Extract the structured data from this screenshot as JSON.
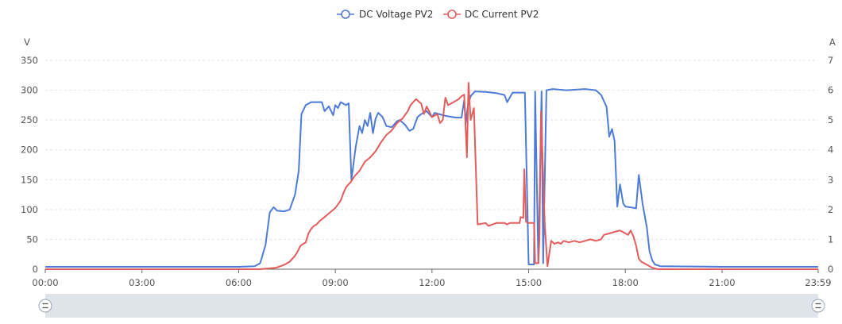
{
  "legend": [
    {
      "name": "DC Voltage PV2",
      "color": "#4e7bd8"
    },
    {
      "name": "DC Current PV2",
      "color": "#e35d5d"
    }
  ],
  "axes": {
    "left_unit": "V",
    "right_unit": "A",
    "x_ticks": [
      "00:00",
      "03:00",
      "06:00",
      "09:00",
      "12:00",
      "15:00",
      "18:00",
      "21:00",
      "23:59"
    ],
    "y_left_ticks": [
      "0",
      "50",
      "100",
      "150",
      "200",
      "250",
      "300",
      "350"
    ],
    "y_right_ticks": [
      "0",
      "1",
      "2",
      "3",
      "4",
      "5",
      "6",
      "7"
    ]
  },
  "zoom_slider": {
    "start": 0,
    "end": 100
  },
  "chart_data": {
    "type": "line",
    "xlabel": "",
    "ylabel": "V",
    "y2label": "A",
    "xlim": [
      "00:00",
      "23:59"
    ],
    "ylim": [
      0,
      350
    ],
    "y2lim": [
      0,
      7
    ],
    "grid": true,
    "legend_position": "top-center",
    "series": [
      {
        "name": "DC Voltage PV2",
        "axis": "left",
        "color": "#4e7bd8",
        "points": [
          [
            "00:00",
            4
          ],
          [
            "03:00",
            4
          ],
          [
            "06:00",
            4
          ],
          [
            "06:30",
            5
          ],
          [
            "06:40",
            10
          ],
          [
            "06:50",
            40
          ],
          [
            "06:58",
            95
          ],
          [
            "07:05",
            104
          ],
          [
            "07:12",
            98
          ],
          [
            "07:25",
            97
          ],
          [
            "07:35",
            100
          ],
          [
            "07:45",
            125
          ],
          [
            "07:52",
            165
          ],
          [
            "07:57",
            260
          ],
          [
            "08:05",
            275
          ],
          [
            "08:15",
            280
          ],
          [
            "08:35",
            280
          ],
          [
            "08:40",
            265
          ],
          [
            "08:48",
            273
          ],
          [
            "08:56",
            258
          ],
          [
            "09:00",
            275
          ],
          [
            "09:05",
            270
          ],
          [
            "09:10",
            280
          ],
          [
            "09:20",
            275
          ],
          [
            "09:25",
            278
          ],
          [
            "09:30",
            150
          ],
          [
            "09:38",
            205
          ],
          [
            "09:45",
            240
          ],
          [
            "09:50",
            228
          ],
          [
            "09:55",
            250
          ],
          [
            "10:00",
            240
          ],
          [
            "10:05",
            262
          ],
          [
            "10:10",
            228
          ],
          [
            "10:15",
            252
          ],
          [
            "10:20",
            262
          ],
          [
            "10:28",
            255
          ],
          [
            "10:35",
            240
          ],
          [
            "10:45",
            238
          ],
          [
            "10:55",
            248
          ],
          [
            "11:00",
            250
          ],
          [
            "11:10",
            242
          ],
          [
            "11:18",
            232
          ],
          [
            "11:25",
            235
          ],
          [
            "11:33",
            255
          ],
          [
            "11:40",
            260
          ],
          [
            "11:50",
            265
          ],
          [
            "12:00",
            255
          ],
          [
            "12:05",
            262
          ],
          [
            "12:25",
            257
          ],
          [
            "12:45",
            254
          ],
          [
            "12:55",
            254
          ],
          [
            "13:00",
            283
          ],
          [
            "13:03",
            245
          ],
          [
            "13:07",
            275
          ],
          [
            "13:12",
            290
          ],
          [
            "13:20",
            298
          ],
          [
            "13:40",
            297
          ],
          [
            "14:00",
            295
          ],
          [
            "14:15",
            292
          ],
          [
            "14:20",
            280
          ],
          [
            "14:30",
            296
          ],
          [
            "14:40",
            296
          ],
          [
            "14:53",
            296
          ],
          [
            "15:00",
            8
          ],
          [
            "15:10",
            8
          ],
          [
            "15:12",
            298
          ],
          [
            "15:18",
            10
          ],
          [
            "15:24",
            298
          ],
          [
            "15:27",
            10
          ],
          [
            "15:33",
            300
          ],
          [
            "15:45",
            302
          ],
          [
            "16:10",
            300
          ],
          [
            "16:45",
            302
          ],
          [
            "17:05",
            300
          ],
          [
            "17:15",
            292
          ],
          [
            "17:25",
            272
          ],
          [
            "17:30",
            222
          ],
          [
            "17:35",
            235
          ],
          [
            "17:40",
            215
          ],
          [
            "17:45",
            105
          ],
          [
            "17:50",
            142
          ],
          [
            "17:56",
            110
          ],
          [
            "18:00",
            105
          ],
          [
            "18:15",
            103
          ],
          [
            "18:20",
            102
          ],
          [
            "18:25",
            158
          ],
          [
            "18:32",
            110
          ],
          [
            "18:40",
            70
          ],
          [
            "18:45",
            30
          ],
          [
            "18:50",
            15
          ],
          [
            "18:55",
            8
          ],
          [
            "19:05",
            5
          ],
          [
            "21:00",
            4
          ],
          [
            "23:59",
            4
          ]
        ]
      },
      {
        "name": "DC Current PV2",
        "axis": "right",
        "color": "#e35d5d",
        "points": [
          [
            "00:00",
            0
          ],
          [
            "06:40",
            0
          ],
          [
            "07:10",
            0.05
          ],
          [
            "07:25",
            0.15
          ],
          [
            "07:35",
            0.25
          ],
          [
            "07:45",
            0.45
          ],
          [
            "07:50",
            0.6
          ],
          [
            "07:55",
            0.78
          ],
          [
            "08:00",
            0.85
          ],
          [
            "08:05",
            0.9
          ],
          [
            "08:10",
            1.2
          ],
          [
            "08:15",
            1.35
          ],
          [
            "08:20",
            1.45
          ],
          [
            "08:25",
            1.5
          ],
          [
            "08:30",
            1.6
          ],
          [
            "08:40",
            1.75
          ],
          [
            "08:50",
            1.9
          ],
          [
            "09:00",
            2.05
          ],
          [
            "09:10",
            2.3
          ],
          [
            "09:15",
            2.55
          ],
          [
            "09:20",
            2.75
          ],
          [
            "09:30",
            2.95
          ],
          [
            "09:35",
            3.1
          ],
          [
            "09:45",
            3.3
          ],
          [
            "09:55",
            3.6
          ],
          [
            "10:05",
            3.75
          ],
          [
            "10:15",
            3.95
          ],
          [
            "10:25",
            4.25
          ],
          [
            "10:35",
            4.5
          ],
          [
            "10:45",
            4.65
          ],
          [
            "10:55",
            4.9
          ],
          [
            "11:05",
            5.05
          ],
          [
            "11:15",
            5.3
          ],
          [
            "11:20",
            5.5
          ],
          [
            "11:30",
            5.7
          ],
          [
            "11:40",
            5.55
          ],
          [
            "11:45",
            5.2
          ],
          [
            "11:50",
            5.45
          ],
          [
            "11:55",
            5.28
          ],
          [
            "12:00",
            5.1
          ],
          [
            "12:10",
            5.2
          ],
          [
            "12:15",
            4.9
          ],
          [
            "12:20",
            5.0
          ],
          [
            "12:25",
            5.75
          ],
          [
            "12:30",
            5.5
          ],
          [
            "12:40",
            5.6
          ],
          [
            "12:50",
            5.7
          ],
          [
            "12:55",
            5.8
          ],
          [
            "13:00",
            5.85
          ],
          [
            "13:05",
            3.75
          ],
          [
            "13:08",
            6.25
          ],
          [
            "13:12",
            5.0
          ],
          [
            "13:18",
            5.4
          ],
          [
            "13:25",
            1.5
          ],
          [
            "13:40",
            1.55
          ],
          [
            "13:45",
            1.45
          ],
          [
            "14:00",
            1.55
          ],
          [
            "14:15",
            1.55
          ],
          [
            "14:20",
            1.5
          ],
          [
            "14:25",
            1.55
          ],
          [
            "14:35",
            1.55
          ],
          [
            "14:43",
            1.55
          ],
          [
            "14:45",
            1.75
          ],
          [
            "14:50",
            1.72
          ],
          [
            "14:52",
            3.35
          ],
          [
            "14:55",
            1.6
          ],
          [
            "14:58",
            1.55
          ],
          [
            "15:10",
            1.55
          ],
          [
            "15:12",
            0.2
          ],
          [
            "15:18",
            0.2
          ],
          [
            "15:20",
            1.0
          ],
          [
            "15:23",
            5.3
          ],
          [
            "15:30",
            1.5
          ],
          [
            "15:35",
            0.1
          ],
          [
            "15:42",
            0.95
          ],
          [
            "15:48",
            0.85
          ],
          [
            "15:55",
            0.9
          ],
          [
            "16:00",
            0.85
          ],
          [
            "16:05",
            0.95
          ],
          [
            "16:15",
            0.9
          ],
          [
            "16:25",
            0.95
          ],
          [
            "16:35",
            0.9
          ],
          [
            "16:45",
            0.95
          ],
          [
            "16:55",
            1.0
          ],
          [
            "17:05",
            0.95
          ],
          [
            "17:15",
            1.0
          ],
          [
            "17:20",
            1.15
          ],
          [
            "17:30",
            1.2
          ],
          [
            "17:40",
            1.25
          ],
          [
            "17:50",
            1.3
          ],
          [
            "17:55",
            1.25
          ],
          [
            "18:00",
            1.2
          ],
          [
            "18:05",
            1.15
          ],
          [
            "18:10",
            1.3
          ],
          [
            "18:15",
            1.1
          ],
          [
            "18:20",
            0.8
          ],
          [
            "18:25",
            0.35
          ],
          [
            "18:30",
            0.25
          ],
          [
            "18:40",
            0.15
          ],
          [
            "18:50",
            0.05
          ],
          [
            "19:00",
            0.0
          ],
          [
            "23:59",
            0
          ]
        ]
      }
    ]
  }
}
